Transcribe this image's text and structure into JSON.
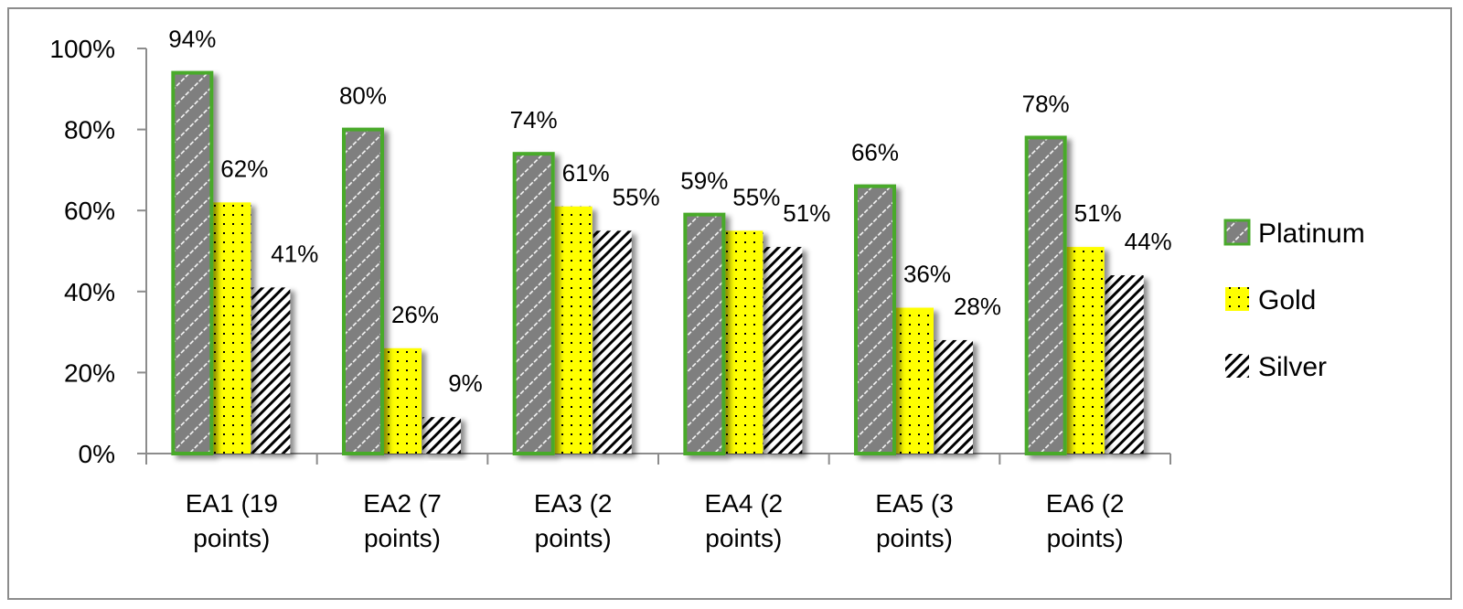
{
  "chart_data": {
    "type": "bar",
    "categories": [
      [
        "EA1 (19",
        "points)"
      ],
      [
        "EA2 (7",
        "points)"
      ],
      [
        "EA3 (2",
        "points)"
      ],
      [
        "EA4 (2",
        "points)"
      ],
      [
        "EA5 (3",
        "points)"
      ],
      [
        "EA6 (2",
        "points)"
      ]
    ],
    "series": [
      {
        "name": "Platinum",
        "values": [
          94,
          80,
          74,
          59,
          66,
          78
        ],
        "labels": [
          "94%",
          "80%",
          "74%",
          "59%",
          "66%",
          "78%"
        ],
        "color": "#7f7f7f",
        "border": "#4aaa2c"
      },
      {
        "name": "Gold",
        "values": [
          62,
          26,
          61,
          55,
          36,
          51
        ],
        "labels": [
          "62%",
          "26%",
          "61%",
          "55%",
          "36%",
          "51%"
        ],
        "color": "#ffff00"
      },
      {
        "name": "Silver",
        "values": [
          41,
          9,
          55,
          51,
          28,
          44
        ],
        "labels": [
          "41%",
          "9%",
          "55%",
          "51%",
          "28%",
          "44%"
        ],
        "color": "#ffffff"
      }
    ],
    "ylim": [
      0,
      100
    ],
    "yticks": [
      "0%",
      "20%",
      "40%",
      "60%",
      "80%",
      "100%"
    ],
    "legend_position": "right",
    "grid": false
  }
}
